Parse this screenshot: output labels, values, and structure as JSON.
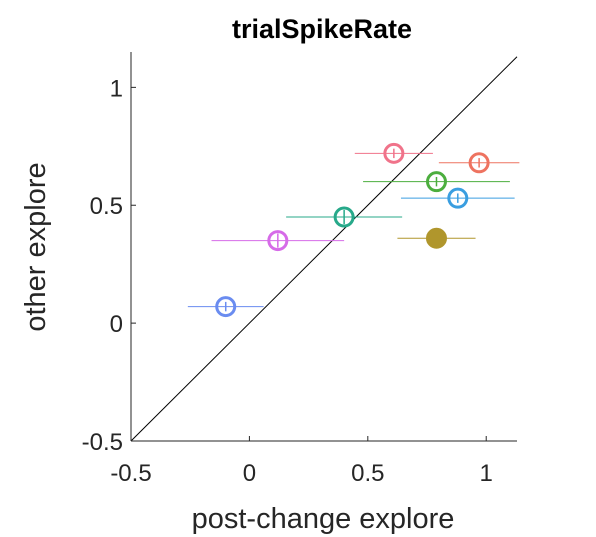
{
  "chart_data": {
    "type": "scatter",
    "title": "trialSpikeRate",
    "x_label": "post-change explore",
    "y_label": "other explore",
    "xlim": [
      -0.5,
      1.13
    ],
    "ylim": [
      -0.5,
      1.15
    ],
    "xticks": [
      -0.5,
      0,
      0.5,
      1
    ],
    "yticks": [
      -0.5,
      0,
      0.5,
      1
    ],
    "identity_line": true,
    "points": [
      {
        "x": -0.1,
        "y": 0.07,
        "xerr": 0.16,
        "yerr": 0.02,
        "color": "#6a8cf0",
        "filled": false
      },
      {
        "x": 0.12,
        "y": 0.35,
        "xerr": 0.28,
        "yerr": 0.03,
        "color": "#d66be8",
        "filled": false
      },
      {
        "x": 0.4,
        "y": 0.45,
        "xerr": 0.245,
        "yerr": 0.03,
        "color": "#27a98a",
        "filled": false
      },
      {
        "x": 0.61,
        "y": 0.72,
        "xerr": 0.165,
        "yerr": 0.02,
        "color": "#f0738a",
        "filled": false
      },
      {
        "x": 0.79,
        "y": 0.6,
        "xerr": 0.31,
        "yerr": 0.02,
        "color": "#4cae3e",
        "filled": false
      },
      {
        "x": 0.88,
        "y": 0.53,
        "xerr": 0.24,
        "yerr": 0.02,
        "color": "#3a9ee0",
        "filled": false
      },
      {
        "x": 0.97,
        "y": 0.68,
        "xerr": 0.17,
        "yerr": 0.02,
        "color": "#ee7360",
        "filled": false
      },
      {
        "x": 0.79,
        "y": 0.36,
        "xerr": 0.165,
        "yerr": 0.02,
        "color": "#b0962c",
        "filled": true
      }
    ]
  }
}
